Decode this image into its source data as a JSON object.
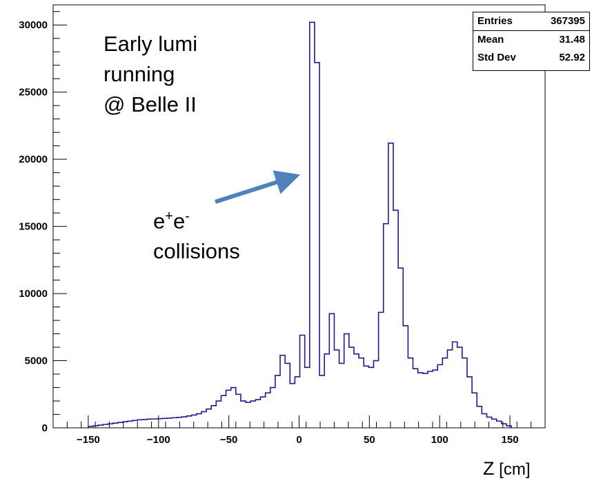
{
  "chart_data": {
    "type": "bar",
    "xlabel_var": "Z",
    "xlabel_unit": " [cm]",
    "xlim": [
      -175,
      175
    ],
    "ylim": [
      0,
      31500
    ],
    "xticks": [
      -150,
      -100,
      -50,
      0,
      50,
      100,
      150
    ],
    "yticks": [
      0,
      5000,
      10000,
      15000,
      20000,
      25000,
      30000
    ],
    "bin_width": 3.5,
    "bin_start": -150,
    "values": [
      100,
      150,
      200,
      250,
      300,
      350,
      400,
      450,
      500,
      550,
      600,
      620,
      650,
      660,
      680,
      700,
      720,
      750,
      780,
      820,
      880,
      950,
      1050,
      1200,
      1400,
      1650,
      2000,
      2400,
      2800,
      3000,
      2500,
      2000,
      1900,
      2000,
      2100,
      2300,
      2600,
      3000,
      3900,
      5400,
      4800,
      3300,
      3800,
      6900,
      4500,
      30200,
      27200,
      3900,
      5500,
      8500,
      5800,
      4800,
      7000,
      6000,
      5500,
      5200,
      4600,
      4500,
      5000,
      8600,
      15200,
      21200,
      16200,
      11900,
      7600,
      5200,
      4400,
      4100,
      4050,
      4200,
      4300,
      4700,
      5200,
      5800,
      6400,
      6000,
      5200,
      3800,
      2600,
      1600,
      1050,
      800,
      650,
      500,
      300,
      150
    ],
    "line_color": "#1b1b8f",
    "stats": {
      "entries_label": "Entries",
      "entries_value": "367395",
      "mean_label": "Mean",
      "mean_value": "31.48",
      "stddev_label": "Std Dev",
      "stddev_value": "52.92"
    },
    "annotations": {
      "early_line1": "Early lumi",
      "early_line2": "running",
      "early_line3": "@ Belle II",
      "ee_base1": "e",
      "ee_sup1": "+",
      "ee_base2": "e",
      "ee_sup2": "-",
      "ee_line2": "collisions",
      "arrow_color": "#4f81bd"
    }
  }
}
